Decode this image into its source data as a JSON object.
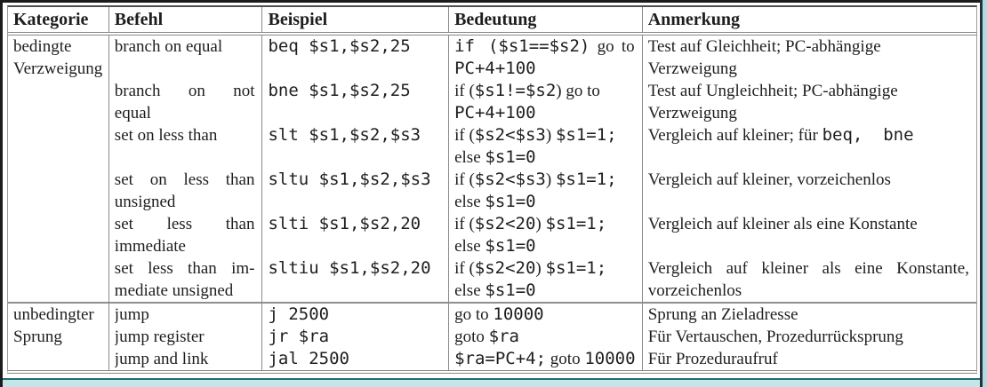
{
  "page": {
    "colors": {
      "frame_black": "#1c1c1c",
      "right_dark_line": "#22333d",
      "right_cyan_stripe": "#b5d9e2",
      "footer_teal_rule": "#1e6e72",
      "footer_cyan_strip": "#c4e6e8",
      "table_rule_gray": "#8a8a8a",
      "text": "#1e1e1e"
    }
  },
  "table": {
    "headers": [
      "Kategorie",
      "Befehl",
      "Beispiel",
      "Bedeutung",
      "Anmerkung"
    ],
    "groups": [
      {
        "category": [
          "bedingte",
          "Verzweigung"
        ],
        "rows": [
          {
            "lines": 2,
            "befehl": [
              {
                "seg": [
                  [
                    "s",
                    "branch on equal"
                  ]
                ]
              }
            ],
            "beispiel": [
              {
                "seg": [
                  [
                    "m",
                    "beq $s1,$s2,25"
                  ]
                ]
              }
            ],
            "bedeutung": [
              {
                "j": true,
                "seg": [
                  [
                    "m",
                    "if ($s1==$s2)"
                  ],
                  [
                    "s",
                    " go to"
                  ]
                ]
              },
              {
                "seg": [
                  [
                    "m",
                    "PC+4+100"
                  ]
                ]
              }
            ],
            "anmerkung": [
              {
                "seg": [
                  [
                    "s",
                    "Test auf Gleichheit; PC-abhängige"
                  ]
                ]
              },
              {
                "seg": [
                  [
                    "s",
                    "Verzweigung"
                  ]
                ]
              }
            ]
          },
          {
            "lines": 2,
            "befehl": [
              {
                "j": true,
                "seg": [
                  [
                    "s",
                    "branch on not"
                  ]
                ]
              },
              {
                "seg": [
                  [
                    "s",
                    "equal"
                  ]
                ]
              }
            ],
            "beispiel": [
              {
                "seg": [
                  [
                    "m",
                    "bne $s1,$s2,25"
                  ]
                ]
              }
            ],
            "bedeutung": [
              {
                "seg": [
                  [
                    "s",
                    "if ("
                  ],
                  [
                    "m",
                    "$s1!=$s2"
                  ],
                  [
                    "s",
                    ") go to"
                  ]
                ]
              },
              {
                "seg": [
                  [
                    "m",
                    "PC+4+100"
                  ]
                ]
              }
            ],
            "anmerkung": [
              {
                "seg": [
                  [
                    "s",
                    "Test auf Ungleichheit; PC-abhängige"
                  ]
                ]
              },
              {
                "seg": [
                  [
                    "s",
                    "Verzweigung"
                  ]
                ]
              }
            ]
          },
          {
            "lines": 2,
            "befehl": [
              {
                "seg": [
                  [
                    "s",
                    "set on less than"
                  ]
                ]
              }
            ],
            "beispiel": [
              {
                "seg": [
                  [
                    "m",
                    "slt $s1,$s2,$s3"
                  ]
                ]
              }
            ],
            "bedeutung": [
              {
                "seg": [
                  [
                    "s",
                    "if ("
                  ],
                  [
                    "m",
                    "$s2<$s3"
                  ],
                  [
                    "s",
                    ") "
                  ],
                  [
                    "m",
                    "$s1=1;"
                  ]
                ]
              },
              {
                "seg": [
                  [
                    "s",
                    "else "
                  ],
                  [
                    "m",
                    "$s1=0"
                  ]
                ]
              }
            ],
            "anmerkung": [
              {
                "seg": [
                  [
                    "s",
                    "Vergleich auf kleiner; für "
                  ],
                  [
                    "m",
                    "beq,  bne"
                  ]
                ]
              }
            ]
          },
          {
            "lines": 2,
            "befehl": [
              {
                "j": true,
                "seg": [
                  [
                    "s",
                    "set on less than"
                  ]
                ]
              },
              {
                "seg": [
                  [
                    "s",
                    "unsigned"
                  ]
                ]
              }
            ],
            "beispiel": [
              {
                "seg": [
                  [
                    "m",
                    "sltu $s1,$s2,$s3"
                  ]
                ]
              }
            ],
            "bedeutung": [
              {
                "seg": [
                  [
                    "s",
                    "if ("
                  ],
                  [
                    "m",
                    "$s2<$s3"
                  ],
                  [
                    "s",
                    ") "
                  ],
                  [
                    "m",
                    "$s1=1;"
                  ]
                ]
              },
              {
                "seg": [
                  [
                    "s",
                    "else "
                  ],
                  [
                    "m",
                    "$s1=0"
                  ]
                ]
              }
            ],
            "anmerkung": [
              {
                "seg": [
                  [
                    "s",
                    "Vergleich auf kleiner, vorzeichenlos"
                  ]
                ]
              }
            ]
          },
          {
            "lines": 2,
            "befehl": [
              {
                "j": true,
                "seg": [
                  [
                    "s",
                    "set less than"
                  ]
                ]
              },
              {
                "seg": [
                  [
                    "s",
                    "immediate"
                  ]
                ]
              }
            ],
            "beispiel": [
              {
                "seg": [
                  [
                    "m",
                    "slti $s1,$s2,20"
                  ]
                ]
              }
            ],
            "bedeutung": [
              {
                "seg": [
                  [
                    "s",
                    "if ("
                  ],
                  [
                    "m",
                    "$s2<20"
                  ],
                  [
                    "s",
                    ") "
                  ],
                  [
                    "m",
                    "$s1=1;"
                  ]
                ]
              },
              {
                "seg": [
                  [
                    "s",
                    "else "
                  ],
                  [
                    "m",
                    "$s1=0"
                  ]
                ]
              }
            ],
            "anmerkung": [
              {
                "seg": [
                  [
                    "s",
                    "Vergleich auf kleiner als eine Konstante"
                  ]
                ]
              }
            ]
          },
          {
            "lines": 2,
            "befehl": [
              {
                "j": true,
                "seg": [
                  [
                    "s",
                    "set less than im-"
                  ]
                ]
              },
              {
                "seg": [
                  [
                    "s",
                    "mediate unsigned"
                  ]
                ]
              }
            ],
            "beispiel": [
              {
                "seg": [
                  [
                    "m",
                    "sltiu $s1,$s2,20"
                  ]
                ]
              }
            ],
            "bedeutung": [
              {
                "seg": [
                  [
                    "s",
                    "if ("
                  ],
                  [
                    "m",
                    "$s2<20"
                  ],
                  [
                    "s",
                    ") "
                  ],
                  [
                    "m",
                    "$s1=1;"
                  ]
                ]
              },
              {
                "seg": [
                  [
                    "s",
                    "else "
                  ],
                  [
                    "m",
                    "$s1=0"
                  ]
                ]
              }
            ],
            "anmerkung": [
              {
                "j": true,
                "seg": [
                  [
                    "s",
                    "Vergleich auf kleiner als eine Konstante,"
                  ]
                ]
              },
              {
                "seg": [
                  [
                    "s",
                    "vorzeichenlos"
                  ]
                ]
              }
            ]
          }
        ]
      },
      {
        "category": [
          "unbedingter",
          "Sprung"
        ],
        "rows": [
          {
            "lines": 1,
            "befehl": [
              {
                "seg": [
                  [
                    "s",
                    "jump"
                  ]
                ]
              }
            ],
            "beispiel": [
              {
                "seg": [
                  [
                    "m",
                    "j 2500"
                  ]
                ]
              }
            ],
            "bedeutung": [
              {
                "seg": [
                  [
                    "s",
                    "go to "
                  ],
                  [
                    "m",
                    "10000"
                  ]
                ]
              }
            ],
            "anmerkung": [
              {
                "seg": [
                  [
                    "s",
                    "Sprung an Zieladresse"
                  ]
                ]
              }
            ]
          },
          {
            "lines": 1,
            "befehl": [
              {
                "seg": [
                  [
                    "s",
                    "jump register"
                  ]
                ]
              }
            ],
            "beispiel": [
              {
                "seg": [
                  [
                    "m",
                    "jr $ra"
                  ]
                ]
              }
            ],
            "bedeutung": [
              {
                "seg": [
                  [
                    "s",
                    "goto "
                  ],
                  [
                    "m",
                    "$ra"
                  ]
                ]
              }
            ],
            "anmerkung": [
              {
                "seg": [
                  [
                    "s",
                    "Für Vertauschen, Prozedurrücksprung"
                  ]
                ]
              }
            ]
          },
          {
            "lines": 1,
            "befehl": [
              {
                "seg": [
                  [
                    "s",
                    "jump and link"
                  ]
                ]
              }
            ],
            "beispiel": [
              {
                "seg": [
                  [
                    "m",
                    "jal 2500"
                  ]
                ]
              }
            ],
            "bedeutung": [
              {
                "seg": [
                  [
                    "m",
                    "$ra=PC+4;"
                  ],
                  [
                    "s",
                    " goto "
                  ],
                  [
                    "m",
                    "10000"
                  ]
                ]
              }
            ],
            "anmerkung": [
              {
                "seg": [
                  [
                    "s",
                    "Für Prozeduraufruf"
                  ]
                ]
              }
            ]
          }
        ]
      }
    ]
  }
}
